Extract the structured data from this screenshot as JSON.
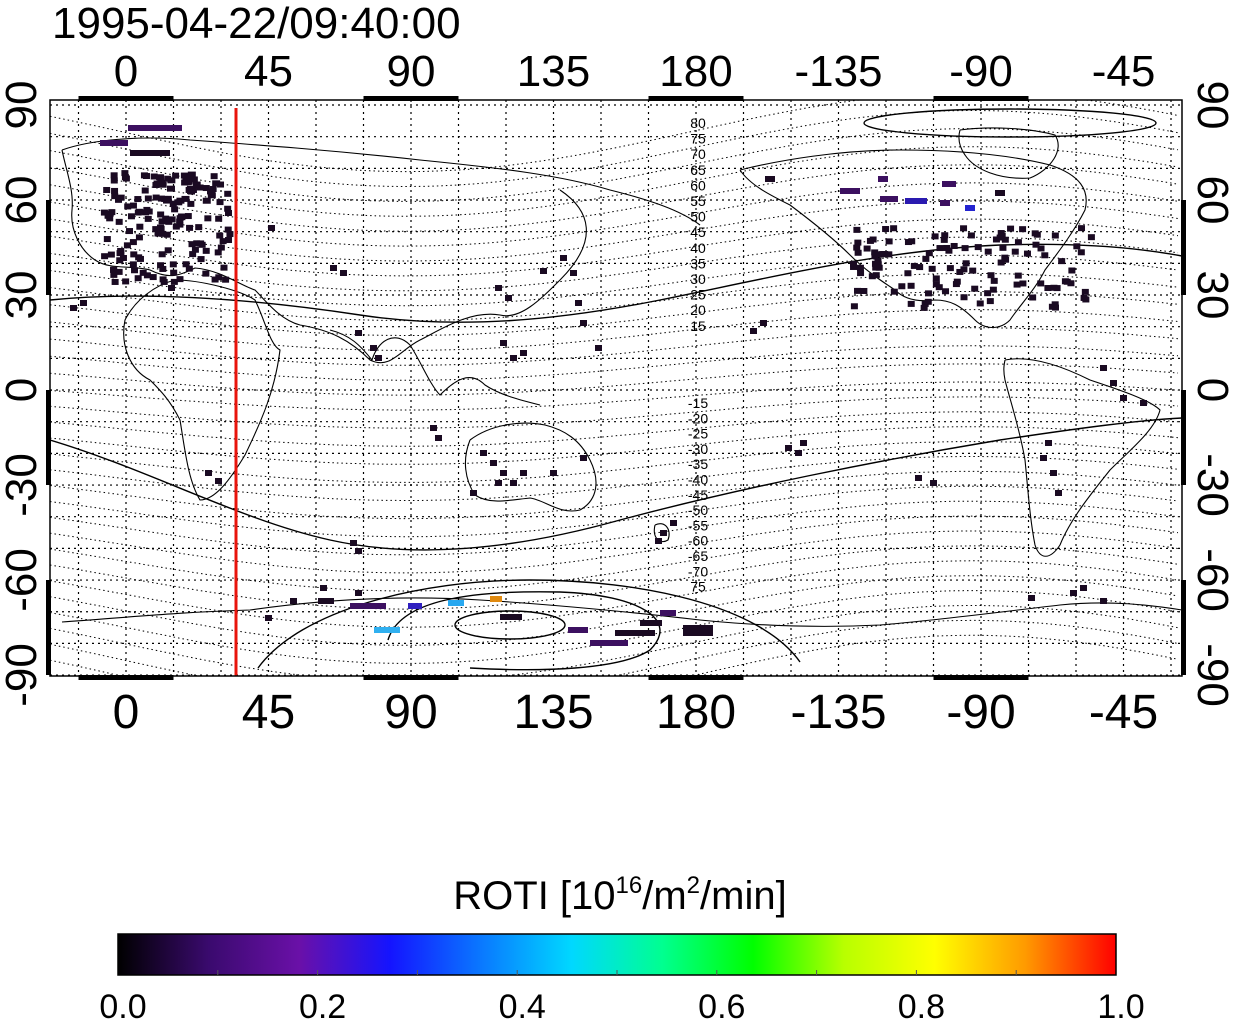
{
  "title": "1995-04-22/09:40:00",
  "colorbar": {
    "label_prefix": "ROTI  [10",
    "label_sup1": "16",
    "label_mid": "/m",
    "label_sup2": "2",
    "label_suffix": "/min]",
    "ticks": [
      "0.0",
      "0.2",
      "0.4",
      "0.6",
      "0.8",
      "1.0"
    ],
    "stops": [
      "#000000",
      "#3a0a6e",
      "#6a10a8",
      "#1414ff",
      "#0a78ff",
      "#00d8ff",
      "#00ff90",
      "#00ff00",
      "#b8ff00",
      "#ffff00",
      "#ff9a00",
      "#ff0000"
    ]
  },
  "axes": {
    "lon_ticks": [
      "0",
      "45",
      "90",
      "135",
      "180",
      "-135",
      "-90",
      "-45"
    ],
    "lat_ticks": [
      "90",
      "60",
      "30",
      "0",
      "-30",
      "-60",
      "-90"
    ]
  },
  "contour_labels_north": [
    "80",
    "75",
    "70",
    "65",
    "60",
    "55",
    "50",
    "45",
    "40",
    "35",
    "30",
    "25",
    "20",
    "15"
  ],
  "contour_labels_south": [
    "-15",
    "-20",
    "-25",
    "-30",
    "-35",
    "-40",
    "-45",
    "-50",
    "-55",
    "-60",
    "-65",
    "-70",
    "75"
  ],
  "colors": {
    "terminator_line": "#e8140c"
  }
}
